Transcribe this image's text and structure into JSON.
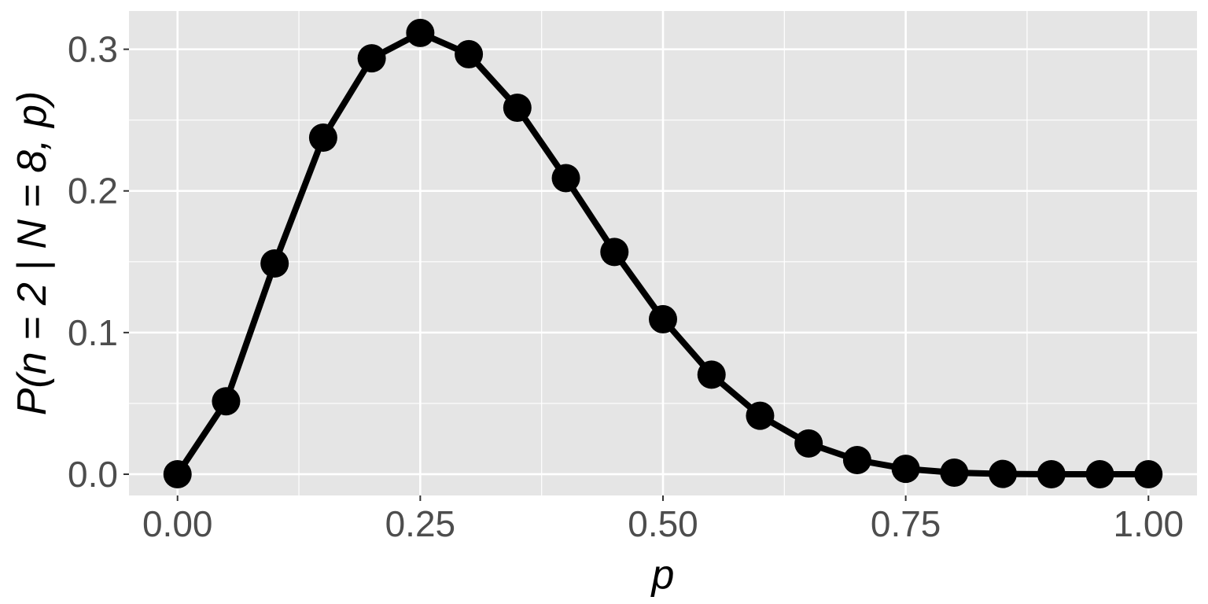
{
  "chart_data": {
    "type": "line",
    "markers": true,
    "x": [
      0.0,
      0.05,
      0.1,
      0.15,
      0.2,
      0.25,
      0.3,
      0.35,
      0.4,
      0.45,
      0.5,
      0.55,
      0.6,
      0.65,
      0.7,
      0.75,
      0.8,
      0.85,
      0.9,
      0.95,
      1.0
    ],
    "series": [
      {
        "values": [
          0.0,
          0.0515,
          0.1488,
          0.2376,
          0.2936,
          0.3115,
          0.2965,
          0.2587,
          0.209,
          0.1569,
          0.1094,
          0.0703,
          0.0413,
          0.0217,
          0.01,
          0.0038,
          0.0011,
          0.0002,
          0.0,
          0.0,
          0.0
        ],
        "color": "#000000"
      }
    ],
    "xlabel": "p",
    "ylabel": "P(n = 2 | N = 8, p)",
    "xlim": [
      -0.05,
      1.05
    ],
    "ylim": [
      -0.015,
      0.327
    ],
    "x_ticks": [
      0.0,
      0.25,
      0.5,
      0.75,
      1.0
    ],
    "x_tick_labels": [
      "0.00",
      "0.25",
      "0.50",
      "0.75",
      "1.00"
    ],
    "y_ticks": [
      0.0,
      0.1,
      0.2,
      0.3
    ],
    "y_tick_labels": [
      "0.0",
      "0.1",
      "0.2",
      "0.3"
    ],
    "grid": true,
    "panel_background": "#e5e5e5",
    "grid_color": "#ffffff"
  }
}
